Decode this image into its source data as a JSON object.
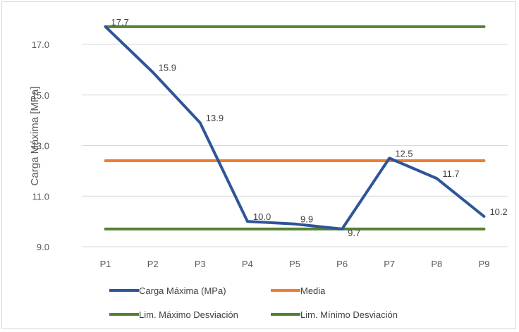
{
  "chart_data": {
    "type": "line",
    "categories": [
      "P1",
      "P2",
      "P3",
      "P4",
      "P5",
      "P6",
      "P7",
      "P8",
      "P9"
    ],
    "ylabel": "Carga Máxima  [MPa]",
    "ylim": [
      9.0,
      17.7
    ],
    "yticks": [
      9.0,
      11.0,
      13.0,
      15.0,
      17.0
    ],
    "ytick_labels": [
      "9.0",
      "11.0",
      "13.0",
      "15.0",
      "17.0"
    ],
    "grid": true,
    "legend_position": "bottom",
    "series": [
      {
        "name": "Carga Máxima (MPa)",
        "color": "#2f5597",
        "values": [
          17.7,
          15.9,
          13.9,
          10.0,
          9.9,
          9.7,
          12.5,
          11.7,
          10.2
        ],
        "labels": [
          "17.7",
          "15.9",
          "13.9",
          "10.0",
          "9.9",
          "9.7",
          "12.5",
          "11.7",
          "10.2"
        ]
      },
      {
        "name": "Media",
        "color": "#ed7d31",
        "values": [
          12.4,
          12.4,
          12.4,
          12.4,
          12.4,
          12.4,
          12.4,
          12.4,
          12.4
        ]
      },
      {
        "name": "Lim. Máximo Desviación",
        "color": "#548235",
        "values": [
          17.7,
          17.7,
          17.7,
          17.7,
          17.7,
          17.7,
          17.7,
          17.7,
          17.7
        ]
      },
      {
        "name": "Lim. Mínimo Desviación",
        "color": "#548235",
        "values": [
          9.7,
          9.7,
          9.7,
          9.7,
          9.7,
          9.7,
          9.7,
          9.7,
          9.7
        ]
      }
    ]
  }
}
